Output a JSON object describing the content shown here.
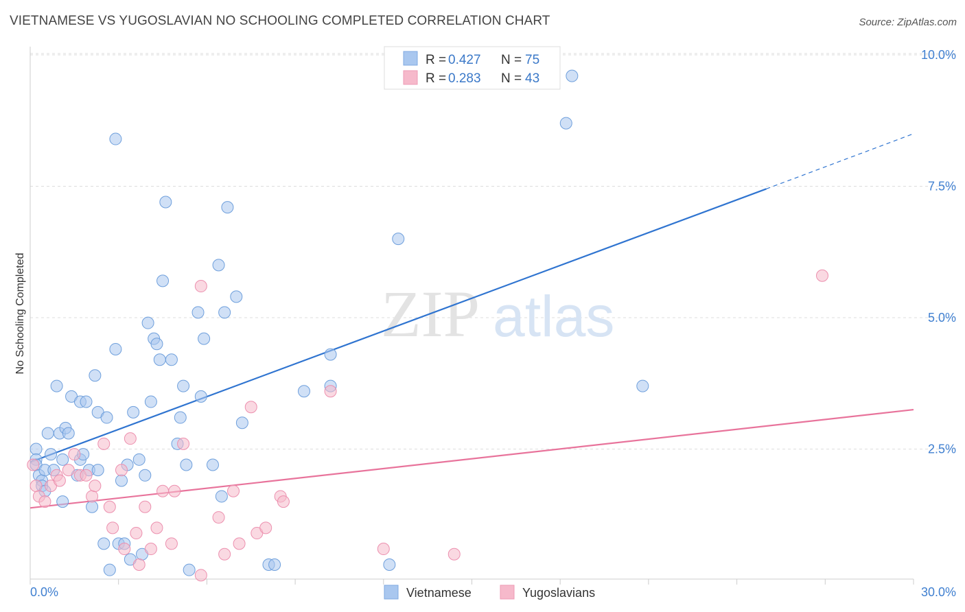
{
  "title": "VIETNAMESE VS YUGOSLAVIAN NO SCHOOLING COMPLETED CORRELATION CHART",
  "source": "Source: ZipAtlas.com",
  "watermark": {
    "zip": "ZIP",
    "atlas": "atlas"
  },
  "colors": {
    "blue_fill": "#a9c7ef",
    "blue_line": "#2f74d0",
    "pink_fill": "#f6b9cb",
    "pink_line": "#e8739b",
    "tick_color": "#3f7fd0",
    "grid": "#dddddd"
  },
  "legend": {
    "rows": [
      {
        "r_label": "R = ",
        "r_value": "0.427",
        "n_label": "N = ",
        "n_value": "75"
      },
      {
        "r_label": "R = ",
        "r_value": "0.283",
        "n_label": "N = ",
        "n_value": "43"
      }
    ]
  },
  "bottom_legend": [
    "Vietnamese",
    "Yugoslavians"
  ],
  "chart_data": {
    "type": "scatter",
    "title": "VIETNAMESE VS YUGOSLAVIAN NO SCHOOLING COMPLETED CORRELATION CHART",
    "xlabel": "",
    "ylabel": "No Schooling Completed",
    "xlim": [
      0,
      30
    ],
    "ylim": [
      0,
      10.5
    ],
    "x_tick_labels": [
      "0.0%",
      "30.0%"
    ],
    "y_ticks": [
      2.5,
      5.0,
      7.5,
      10.0
    ],
    "y_tick_labels": [
      "2.5%",
      "5.0%",
      "7.5%",
      "10.0%"
    ],
    "grid": true,
    "legend_position": "top-center",
    "series": [
      {
        "name": "Vietnamese",
        "R": 0.427,
        "N": 75,
        "trend": {
          "x0": 0,
          "y0": 2.25,
          "x1": 25.0,
          "y1": 7.45,
          "dashed_to_x": 30,
          "dashed_to_y": 8.5
        },
        "points": [
          [
            0.2,
            2.5
          ],
          [
            0.2,
            2.3
          ],
          [
            0.2,
            2.2
          ],
          [
            0.3,
            2.0
          ],
          [
            0.4,
            1.9
          ],
          [
            0.4,
            1.8
          ],
          [
            0.5,
            2.1
          ],
          [
            0.6,
            2.8
          ],
          [
            0.7,
            2.4
          ],
          [
            0.8,
            2.1
          ],
          [
            0.9,
            3.7
          ],
          [
            1.0,
            2.8
          ],
          [
            1.1,
            1.5
          ],
          [
            1.2,
            2.9
          ],
          [
            1.3,
            2.8
          ],
          [
            1.4,
            3.5
          ],
          [
            1.6,
            2.0
          ],
          [
            1.7,
            2.3
          ],
          [
            1.7,
            3.4
          ],
          [
            1.8,
            2.4
          ],
          [
            1.9,
            3.4
          ],
          [
            2.0,
            2.1
          ],
          [
            2.1,
            1.4
          ],
          [
            2.2,
            3.9
          ],
          [
            2.3,
            2.1
          ],
          [
            2.3,
            3.2
          ],
          [
            2.5,
            0.7
          ],
          [
            2.6,
            3.1
          ],
          [
            2.7,
            0.2
          ],
          [
            2.9,
            4.4
          ],
          [
            2.9,
            8.4
          ],
          [
            3.0,
            0.7
          ],
          [
            3.1,
            1.9
          ],
          [
            3.2,
            0.7
          ],
          [
            3.3,
            2.2
          ],
          [
            3.4,
            0.4
          ],
          [
            3.5,
            3.2
          ],
          [
            3.7,
            2.3
          ],
          [
            3.8,
            0.5
          ],
          [
            3.9,
            2.0
          ],
          [
            4.0,
            4.9
          ],
          [
            4.1,
            3.4
          ],
          [
            4.2,
            4.6
          ],
          [
            4.3,
            4.5
          ],
          [
            4.4,
            4.2
          ],
          [
            4.5,
            5.7
          ],
          [
            4.6,
            7.2
          ],
          [
            4.8,
            4.2
          ],
          [
            5.0,
            2.6
          ],
          [
            5.1,
            3.1
          ],
          [
            5.2,
            3.7
          ],
          [
            5.3,
            2.2
          ],
          [
            5.4,
            0.2
          ],
          [
            5.7,
            5.1
          ],
          [
            5.8,
            3.5
          ],
          [
            5.9,
            4.6
          ],
          [
            6.2,
            2.2
          ],
          [
            6.4,
            6.0
          ],
          [
            6.5,
            1.6
          ],
          [
            6.6,
            5.1
          ],
          [
            6.7,
            7.1
          ],
          [
            7.0,
            5.4
          ],
          [
            7.2,
            3.0
          ],
          [
            8.1,
            0.3
          ],
          [
            8.3,
            0.3
          ],
          [
            9.3,
            3.6
          ],
          [
            10.2,
            4.3
          ],
          [
            10.2,
            3.7
          ],
          [
            12.2,
            0.3
          ],
          [
            12.5,
            6.5
          ],
          [
            18.2,
            8.7
          ],
          [
            18.4,
            9.6
          ],
          [
            20.8,
            3.7
          ],
          [
            0.5,
            1.7
          ],
          [
            1.1,
            2.3
          ]
        ]
      },
      {
        "name": "Yugoslavians",
        "R": 0.283,
        "N": 43,
        "trend": {
          "x0": 0,
          "y0": 1.38,
          "x1": 30,
          "y1": 3.25
        },
        "points": [
          [
            0.1,
            2.2
          ],
          [
            0.2,
            1.8
          ],
          [
            0.3,
            1.6
          ],
          [
            0.5,
            1.5
          ],
          [
            0.7,
            1.8
          ],
          [
            0.9,
            2.0
          ],
          [
            1.0,
            1.9
          ],
          [
            1.3,
            2.1
          ],
          [
            1.5,
            2.4
          ],
          [
            1.7,
            2.0
          ],
          [
            1.9,
            2.0
          ],
          [
            2.1,
            1.6
          ],
          [
            2.2,
            1.8
          ],
          [
            2.5,
            2.6
          ],
          [
            2.7,
            1.4
          ],
          [
            2.8,
            1.0
          ],
          [
            3.1,
            2.1
          ],
          [
            3.2,
            0.6
          ],
          [
            3.4,
            2.7
          ],
          [
            3.6,
            0.9
          ],
          [
            3.7,
            0.3
          ],
          [
            3.9,
            1.4
          ],
          [
            4.1,
            0.6
          ],
          [
            4.3,
            1.0
          ],
          [
            4.5,
            1.7
          ],
          [
            4.8,
            0.7
          ],
          [
            4.9,
            1.7
          ],
          [
            5.2,
            2.6
          ],
          [
            5.8,
            5.6
          ],
          [
            5.8,
            0.1
          ],
          [
            6.4,
            1.2
          ],
          [
            6.6,
            0.5
          ],
          [
            6.9,
            1.7
          ],
          [
            7.1,
            0.7
          ],
          [
            7.5,
            3.3
          ],
          [
            7.7,
            0.9
          ],
          [
            8.0,
            1.0
          ],
          [
            8.5,
            1.6
          ],
          [
            8.6,
            1.5
          ],
          [
            10.2,
            3.6
          ],
          [
            12.0,
            0.6
          ],
          [
            14.4,
            0.5
          ],
          [
            26.9,
            5.8
          ]
        ]
      }
    ]
  }
}
